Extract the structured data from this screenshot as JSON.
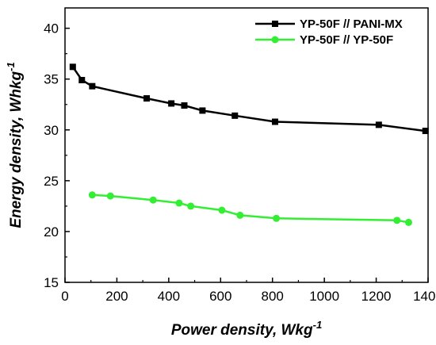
{
  "chart_data": {
    "type": "line",
    "xlabel": "Power density, Wkg",
    "xlabel_sup": "-1",
    "ylabel": "Energy density, Whkg",
    "ylabel_sup": "-1",
    "xlim": [
      0,
      1400
    ],
    "ylim": [
      15,
      42
    ],
    "xticks": [
      0,
      200,
      400,
      600,
      800,
      1000,
      1200,
      1400
    ],
    "yticks": [
      15,
      20,
      25,
      30,
      35,
      40
    ],
    "grid": false,
    "legend_position": "top-right",
    "series": [
      {
        "name": "YP-50F // PANI-MX",
        "color": "#000000",
        "marker": "square",
        "x": [
          30,
          65,
          105,
          315,
          410,
          460,
          530,
          655,
          810,
          1210,
          1390
        ],
        "y": [
          36.2,
          34.9,
          34.3,
          33.1,
          32.6,
          32.4,
          31.9,
          31.4,
          30.8,
          30.5,
          29.9
        ]
      },
      {
        "name": "YP-50F // YP-50F",
        "color": "#33ee33",
        "marker": "circle",
        "x": [
          105,
          175,
          340,
          440,
          485,
          605,
          675,
          815,
          1280,
          1325
        ],
        "y": [
          23.6,
          23.5,
          23.1,
          22.8,
          22.5,
          22.1,
          21.6,
          21.3,
          21.1,
          20.9
        ]
      }
    ]
  }
}
